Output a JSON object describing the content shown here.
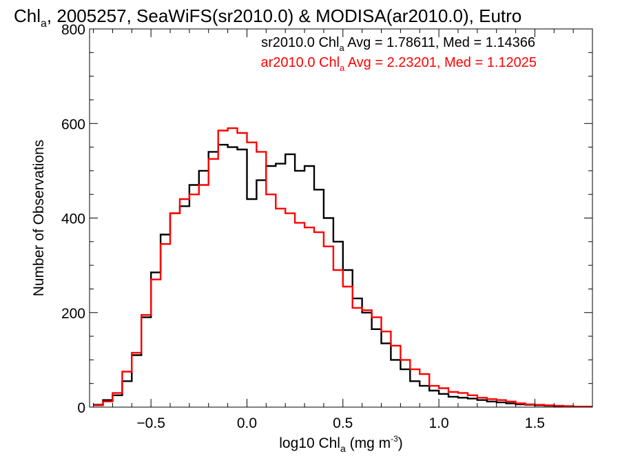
{
  "chart_data": {
    "type": "line",
    "title": {
      "pre": "Chl",
      "sub": "a",
      "post": ", 2005257, SeaWiFS(sr2010.0) & MODISA(ar2010.0), Eutro"
    },
    "xlabel": {
      "pre": "log10 Chl",
      "sub": "a",
      "mid": " (mg m",
      "sup": "-3",
      "post": ")"
    },
    "ylabel": "Number of Observations",
    "xlim": [
      -0.82,
      1.8
    ],
    "ylim": [
      0,
      800
    ],
    "xticks": [
      -0.5,
      0.0,
      0.5,
      1.0,
      1.5
    ],
    "xtick_labels": [
      "−0.5",
      "0.0",
      "0.5",
      "1.0",
      "1.5"
    ],
    "yticks": [
      0,
      200,
      400,
      600,
      800
    ],
    "ytick_labels": [
      "0",
      "200",
      "400",
      "600",
      "800"
    ],
    "grid": false,
    "step": true,
    "series": [
      {
        "name": "sr2010.0",
        "color": "#000000",
        "legend": {
          "pre": "sr2010.0 Chl",
          "sub": "a",
          "post": " Avg = 1.78611, Med = 1.14366"
        },
        "x": [
          -0.8,
          -0.75,
          -0.7,
          -0.65,
          -0.6,
          -0.55,
          -0.5,
          -0.45,
          -0.4,
          -0.35,
          -0.3,
          -0.25,
          -0.2,
          -0.15,
          -0.1,
          -0.05,
          0.0,
          0.05,
          0.1,
          0.15,
          0.2,
          0.25,
          0.3,
          0.35,
          0.4,
          0.45,
          0.5,
          0.55,
          0.6,
          0.65,
          0.7,
          0.75,
          0.8,
          0.85,
          0.9,
          0.95,
          1.0,
          1.05,
          1.1,
          1.15,
          1.2,
          1.25,
          1.3,
          1.35,
          1.4,
          1.45,
          1.5,
          1.55,
          1.6,
          1.65,
          1.7,
          1.75
        ],
        "y": [
          5,
          15,
          25,
          55,
          110,
          190,
          285,
          365,
          410,
          425,
          470,
          500,
          540,
          555,
          550,
          545,
          440,
          480,
          510,
          515,
          535,
          500,
          510,
          460,
          400,
          350,
          290,
          230,
          200,
          165,
          135,
          100,
          80,
          55,
          45,
          35,
          28,
          22,
          20,
          18,
          15,
          12,
          10,
          8,
          6,
          5,
          4,
          3,
          2,
          2,
          1,
          1
        ]
      },
      {
        "name": "ar2010.0",
        "color": "#ff0000",
        "legend": {
          "pre": "ar2010.0 Chl",
          "sub": "a",
          "post": " Avg = 2.23201, Med = 1.12025"
        },
        "x": [
          -0.8,
          -0.75,
          -0.7,
          -0.65,
          -0.6,
          -0.55,
          -0.5,
          -0.45,
          -0.4,
          -0.35,
          -0.3,
          -0.25,
          -0.2,
          -0.15,
          -0.1,
          -0.05,
          0.0,
          0.05,
          0.1,
          0.15,
          0.2,
          0.25,
          0.3,
          0.35,
          0.4,
          0.45,
          0.5,
          0.55,
          0.6,
          0.65,
          0.7,
          0.75,
          0.8,
          0.85,
          0.9,
          0.95,
          1.0,
          1.05,
          1.1,
          1.15,
          1.2,
          1.25,
          1.3,
          1.35,
          1.4,
          1.45,
          1.5,
          1.55,
          1.6,
          1.65,
          1.7,
          1.75
        ],
        "y": [
          4,
          12,
          30,
          75,
          115,
          195,
          270,
          345,
          410,
          440,
          450,
          470,
          525,
          585,
          590,
          580,
          560,
          540,
          450,
          420,
          410,
          390,
          380,
          370,
          340,
          290,
          255,
          210,
          205,
          190,
          160,
          130,
          100,
          80,
          70,
          45,
          40,
          32,
          30,
          25,
          20,
          17,
          15,
          12,
          8,
          6,
          5,
          4,
          3,
          2,
          1,
          1
        ]
      }
    ]
  }
}
